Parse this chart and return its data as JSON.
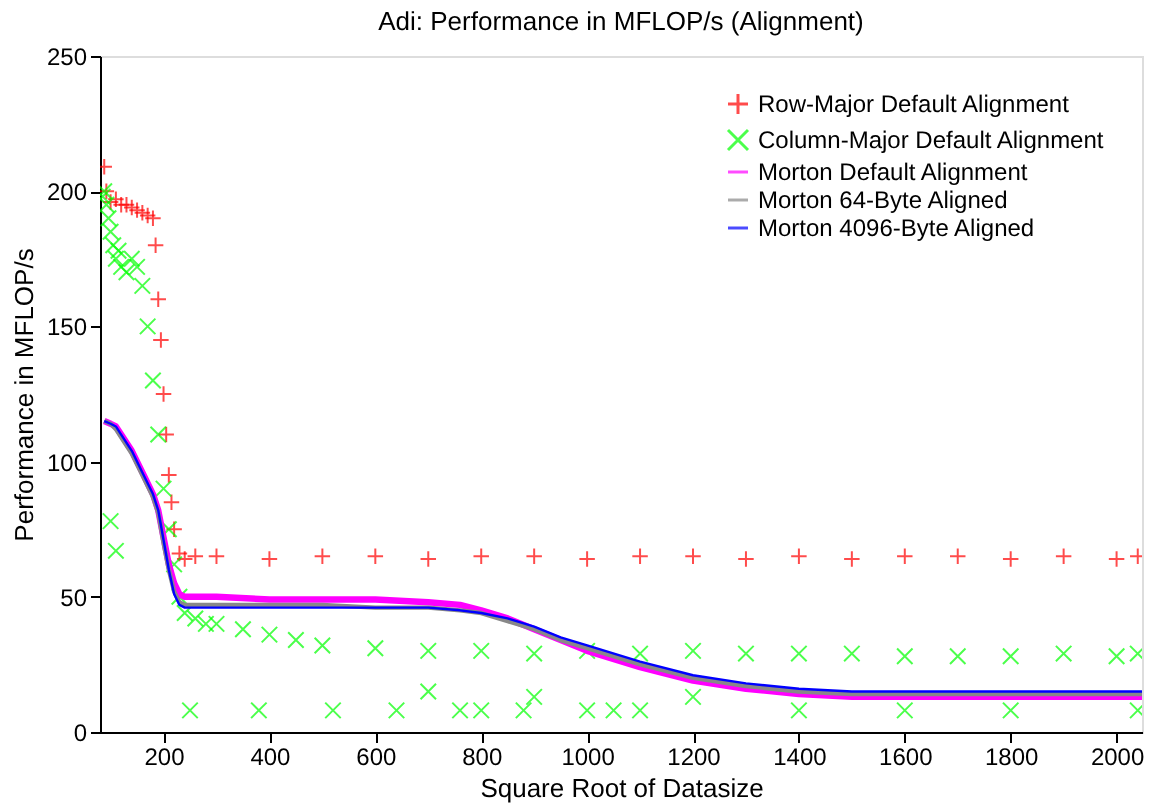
{
  "chart_data": {
    "type": "scatter",
    "title": "Adi: Performance in MFLOP/s (Alignment)",
    "xlabel": "Square Root of Datasize",
    "ylabel": "Performance in MFLOP/s",
    "xlim": [
      80,
      2048
    ],
    "ylim": [
      0,
      250
    ],
    "xticks": [
      200,
      400,
      600,
      800,
      1000,
      1200,
      1400,
      1600,
      1800,
      2000
    ],
    "yticks": [
      0,
      50,
      100,
      150,
      200,
      250
    ],
    "grid": false,
    "legend": "top right",
    "series": [
      {
        "name": "Row-Major Default Alignment",
        "color": "#ff0000",
        "marker": "cross",
        "x": [
          88,
          92,
          100,
          110,
          120,
          130,
          140,
          150,
          160,
          170,
          180,
          185,
          190,
          195,
          200,
          205,
          210,
          215,
          220,
          230,
          240,
          260,
          300,
          400,
          500,
          600,
          700,
          800,
          900,
          1000,
          1100,
          1200,
          1300,
          1400,
          1500,
          1600,
          1700,
          1800,
          1900,
          2000,
          2040
        ],
        "values": [
          209,
          200,
          196,
          197,
          195,
          195,
          194,
          193,
          192,
          191,
          190,
          180,
          160,
          145,
          125,
          110,
          95,
          85,
          75,
          66,
          64,
          65,
          65,
          64,
          65,
          65,
          64,
          65,
          65,
          64,
          65,
          65,
          64,
          65,
          64,
          65,
          65,
          64,
          65,
          64,
          65
        ]
      },
      {
        "name": "Column-Major Default Alignment",
        "color": "#00ff00",
        "marker": "x",
        "x": [
          85,
          88,
          92,
          96,
          100,
          105,
          110,
          115,
          120,
          130,
          140,
          150,
          160,
          170,
          180,
          190,
          200,
          210,
          220,
          230,
          240,
          260,
          280,
          300,
          350,
          400,
          450,
          500,
          600,
          700,
          800,
          900,
          1000,
          1100,
          1200,
          1300,
          1400,
          1500,
          1600,
          1700,
          1800,
          1900,
          2000,
          2040,
          250,
          380,
          520,
          640,
          700,
          760,
          800,
          880,
          900,
          1000,
          1050,
          1100,
          1200,
          1400,
          1600,
          1800,
          2040,
          100,
          110
        ],
        "values": [
          198,
          200,
          195,
          190,
          185,
          180,
          175,
          178,
          172,
          170,
          175,
          172,
          165,
          150,
          130,
          110,
          90,
          75,
          62,
          50,
          44,
          42,
          40,
          40,
          38,
          36,
          34,
          32,
          31,
          30,
          30,
          29,
          30,
          29,
          30,
          29,
          29,
          29,
          28,
          28,
          28,
          29,
          28,
          29,
          8,
          8,
          8,
          8,
          15,
          8,
          8,
          8,
          13,
          8,
          8,
          8,
          13,
          8,
          8,
          8,
          8,
          78,
          67
        ]
      },
      {
        "name": "Morton Default Alignment",
        "color": "#ff00ff",
        "type": "line",
        "x": [
          88,
          100,
          110,
          120,
          140,
          160,
          180,
          190,
          200,
          210,
          220,
          230,
          240,
          260,
          300,
          400,
          500,
          600,
          700,
          760,
          800,
          850,
          900,
          950,
          1000,
          1100,
          1200,
          1300,
          1400,
          1500,
          1600,
          1800,
          2000,
          2048
        ],
        "values": [
          115,
          114,
          113,
          110,
          104,
          96,
          88,
          82,
          72,
          62,
          55,
          51,
          50,
          50,
          50,
          49,
          49,
          49,
          48,
          47,
          45,
          42,
          38,
          34,
          30,
          24,
          19,
          16,
          14,
          13,
          13,
          13,
          13,
          13
        ]
      },
      {
        "name": "Morton 64-Byte Aligned",
        "color": "#888888",
        "type": "line",
        "x": [
          88,
          100,
          110,
          120,
          140,
          160,
          180,
          190,
          200,
          210,
          220,
          230,
          240,
          260,
          300,
          400,
          500,
          600,
          700,
          760,
          800,
          850,
          900,
          950,
          1000,
          1100,
          1200,
          1300,
          1400,
          1500,
          1600,
          1800,
          2000,
          2048
        ],
        "values": [
          115,
          114,
          112,
          109,
          103,
          95,
          87,
          81,
          70,
          60,
          52,
          48,
          47,
          47,
          47,
          47,
          47,
          46,
          46,
          45,
          44,
          41,
          38,
          34,
          31,
          25,
          20,
          17,
          15,
          14,
          14,
          14,
          14,
          14
        ]
      },
      {
        "name": "Morton 4096-Byte Aligned",
        "color": "#0000ff",
        "type": "line",
        "x": [
          88,
          100,
          110,
          120,
          140,
          160,
          180,
          190,
          200,
          210,
          220,
          230,
          240,
          260,
          300,
          400,
          500,
          600,
          700,
          760,
          800,
          850,
          900,
          950,
          1000,
          1100,
          1200,
          1300,
          1400,
          1500,
          1600,
          1800,
          2000,
          2048
        ],
        "values": [
          115,
          114,
          113,
          110,
          104,
          96,
          88,
          82,
          71,
          60,
          51,
          47,
          46,
          46,
          46,
          46,
          46,
          46,
          46,
          45,
          44,
          42,
          39,
          35,
          32,
          26,
          21,
          18,
          16,
          15,
          15,
          15,
          15,
          15
        ]
      }
    ]
  }
}
